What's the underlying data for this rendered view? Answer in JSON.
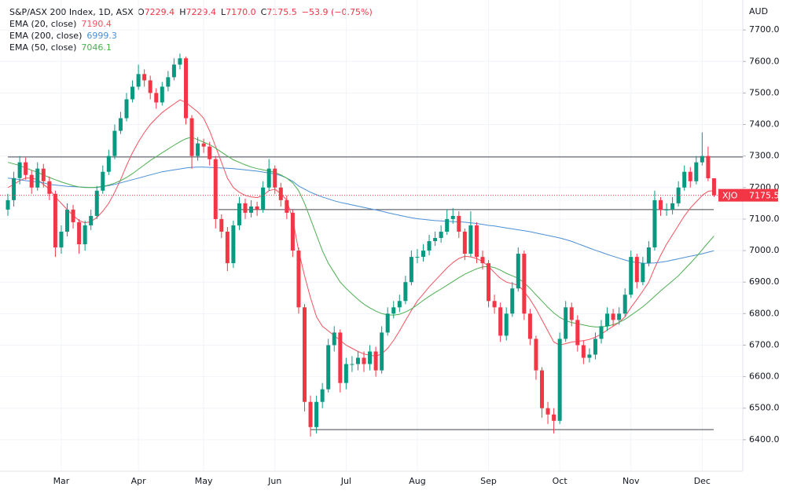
{
  "header": {
    "title": "S&P/ASX 200 Index, 1D, ASX",
    "ohlc": [
      {
        "key": "O",
        "value": "7229.4"
      },
      {
        "key": "H",
        "value": "7229.4"
      },
      {
        "key": "L",
        "value": "7170.0"
      },
      {
        "key": "C",
        "value": "7175.5"
      }
    ],
    "change": "−53.9 (−0.75%)"
  },
  "chart_data": {
    "type": "candlestick",
    "currency": "AUD",
    "symbol_tag": "XJO",
    "up_color": "#089981",
    "down_color": "#f23645",
    "grid": true,
    "categories": [
      null,
      null,
      null,
      null,
      null,
      null,
      null,
      null,
      null,
      "Mar",
      null,
      null,
      null,
      null,
      null,
      null,
      null,
      null,
      null,
      null,
      null,
      null,
      "Apr",
      null,
      null,
      null,
      null,
      null,
      null,
      null,
      null,
      null,
      null,
      "May",
      null,
      null,
      null,
      null,
      null,
      null,
      null,
      null,
      null,
      null,
      null,
      "Jun",
      null,
      null,
      null,
      null,
      null,
      null,
      null,
      null,
      null,
      null,
      null,
      "Jul",
      null,
      null,
      null,
      null,
      null,
      null,
      null,
      null,
      null,
      null,
      null,
      "Aug",
      null,
      null,
      null,
      null,
      null,
      null,
      null,
      null,
      null,
      null,
      null,
      "Sep",
      null,
      null,
      null,
      null,
      null,
      null,
      null,
      null,
      null,
      null,
      null,
      "Oct",
      null,
      null,
      null,
      null,
      null,
      null,
      null,
      null,
      null,
      null,
      null,
      "Nov",
      null,
      null,
      null,
      null,
      null,
      null,
      null,
      null,
      null,
      null,
      null,
      "Dec",
      null,
      null
    ],
    "open": [
      7130,
      7160,
      7230,
      7280,
      7240,
      7200,
      7260,
      7220,
      7180,
      7010,
      7060,
      7130,
      7090,
      7020,
      7080,
      7110,
      7190,
      7250,
      7300,
      7380,
      7420,
      7480,
      7520,
      7560,
      7540,
      7500,
      7470,
      7520,
      7550,
      7590,
      7610,
      7420,
      7300,
      7340,
      7330,
      7290,
      7100,
      7060,
      6960,
      7080,
      7150,
      7120,
      7140,
      7130,
      7200,
      7260,
      7200,
      7160,
      7120,
      7000,
      6820,
      6520,
      6440,
      6520,
      6560,
      6700,
      6740,
      6580,
      6640,
      6640,
      6660,
      6640,
      6680,
      6620,
      6740,
      6800,
      6820,
      6840,
      6900,
      6980,
      6980,
      7000,
      7030,
      7040,
      7060,
      7100,
      7110,
      7060,
      6990,
      7080,
      6980,
      6960,
      6840,
      6820,
      6730,
      6800,
      6880,
      6990,
      6800,
      6720,
      6620,
      6500,
      6480,
      6460,
      6720,
      6820,
      6780,
      6700,
      6660,
      6670,
      6720,
      6760,
      6800,
      6780,
      6800,
      6860,
      6980,
      6900,
      6960,
      7010,
      7160,
      7130,
      7130,
      7150,
      7200,
      7250,
      7220,
      7280,
      7300,
      7229.4
    ],
    "high": [
      7180,
      7250,
      7300,
      7295,
      7255,
      7280,
      7275,
      7235,
      7190,
      7080,
      7150,
      7145,
      7100,
      7095,
      7130,
      7205,
      7270,
      7320,
      7400,
      7440,
      7500,
      7540,
      7590,
      7575,
      7555,
      7515,
      7535,
      7570,
      7610,
      7625,
      7615,
      7430,
      7360,
      7355,
      7345,
      7300,
      7115,
      7075,
      7095,
      7170,
      7165,
      7160,
      7155,
      7220,
      7290,
      7270,
      7215,
      7175,
      7130,
      7010,
      6830,
      6540,
      6540,
      6580,
      6720,
      6760,
      6750,
      6660,
      6665,
      6680,
      6680,
      6700,
      6695,
      6760,
      6820,
      6840,
      6860,
      6920,
      7000,
      7005,
      7020,
      7050,
      7060,
      7080,
      7130,
      7135,
      7125,
      7070,
      7125,
      7090,
      7000,
      6970,
      6860,
      6835,
      6820,
      6900,
      7010,
      7000,
      6815,
      6730,
      6630,
      6520,
      6500,
      6740,
      6840,
      6835,
      6795,
      6715,
      6690,
      6740,
      6780,
      6820,
      6815,
      6820,
      6880,
      7000,
      6990,
      6980,
      7030,
      7190,
      7170,
      7150,
      7170,
      7220,
      7270,
      7265,
      7300,
      7375,
      7330,
      7229.4
    ],
    "low": [
      7110,
      7140,
      7210,
      7225,
      7180,
      7190,
      7200,
      7160,
      6980,
      6990,
      7045,
      7070,
      6990,
      7000,
      7065,
      7100,
      7180,
      7240,
      7290,
      7370,
      7410,
      7470,
      7510,
      7520,
      7480,
      7450,
      7460,
      7505,
      7540,
      7575,
      7400,
      7260,
      7285,
      7310,
      7270,
      7070,
      7040,
      6935,
      6945,
      7065,
      7100,
      7105,
      7110,
      7120,
      7190,
      7180,
      7140,
      7100,
      6980,
      6800,
      6490,
      6410,
      6420,
      6500,
      6550,
      6680,
      6550,
      6560,
      6615,
      6620,
      6615,
      6620,
      6600,
      6610,
      6730,
      6785,
      6805,
      6830,
      6890,
      6960,
      6965,
      6985,
      7015,
      7025,
      7050,
      7085,
      7040,
      6970,
      6980,
      6960,
      6940,
      6820,
      6800,
      6710,
      6715,
      6790,
      6870,
      6780,
      6700,
      6590,
      6470,
      6450,
      6420,
      6450,
      6710,
      6760,
      6680,
      6640,
      6645,
      6655,
      6705,
      6745,
      6760,
      6765,
      6790,
      6850,
      6880,
      6890,
      6950,
      7000,
      7110,
      7110,
      7115,
      7140,
      7190,
      7200,
      7210,
      7270,
      7220,
      7170
    ],
    "close": [
      7160,
      7230,
      7280,
      7240,
      7200,
      7260,
      7220,
      7180,
      7010,
      7060,
      7130,
      7090,
      7020,
      7080,
      7110,
      7190,
      7250,
      7300,
      7380,
      7420,
      7480,
      7520,
      7560,
      7540,
      7500,
      7470,
      7520,
      7550,
      7590,
      7610,
      7420,
      7300,
      7340,
      7330,
      7290,
      7100,
      7060,
      6960,
      7080,
      7150,
      7120,
      7140,
      7130,
      7200,
      7260,
      7200,
      7160,
      7120,
      7000,
      6820,
      6520,
      6440,
      6520,
      6560,
      6700,
      6740,
      6580,
      6640,
      6640,
      6660,
      6640,
      6680,
      6620,
      6740,
      6800,
      6820,
      6840,
      6900,
      6980,
      6980,
      7000,
      7030,
      7040,
      7060,
      7100,
      7110,
      7060,
      6990,
      7080,
      6980,
      6960,
      6840,
      6820,
      6730,
      6800,
      6880,
      6990,
      6800,
      6720,
      6620,
      6500,
      6480,
      6460,
      6720,
      6820,
      6780,
      6700,
      6660,
      6670,
      6720,
      6760,
      6800,
      6780,
      6800,
      6860,
      6980,
      6900,
      6960,
      7010,
      7160,
      7130,
      7130,
      7150,
      7200,
      7250,
      7220,
      7280,
      7300,
      7229.4,
      7175.5
    ],
    "series": [
      {
        "name": "EMA (20, close)",
        "color": "#f7525f",
        "values": [
          7200,
          7210,
          7222,
          7230,
          7230,
          7225,
          7210,
          7195,
          7170,
          7150,
          7130,
          7112,
          7095,
          7088,
          7092,
          7105,
          7125,
          7150,
          7185,
          7225,
          7270,
          7310,
          7345,
          7375,
          7400,
          7420,
          7438,
          7452,
          7465,
          7478,
          7470,
          7455,
          7440,
          7420,
          7380,
          7330,
          7280,
          7230,
          7200,
          7185,
          7175,
          7170,
          7168,
          7175,
          7190,
          7195,
          7180,
          7160,
          7100,
          7000,
          6920,
          6850,
          6790,
          6760,
          6745,
          6730,
          6715,
          6700,
          6690,
          6680,
          6672,
          6668,
          6665,
          6672,
          6690,
          6715,
          6745,
          6778,
          6810,
          6840,
          6862,
          6885,
          6905,
          6925,
          6945,
          6962,
          6975,
          6982,
          6980,
          6975,
          6965,
          6950,
          6930,
          6912,
          6900,
          6895,
          6890,
          6870,
          6845,
          6815,
          6780,
          6745,
          6710,
          6700,
          6705,
          6710,
          6712,
          6714,
          6718,
          6725,
          6735,
          6748,
          6760,
          6772,
          6790,
          6820,
          6845,
          6872,
          6900,
          6945,
          6985,
          7020,
          7050,
          7080,
          7110,
          7135,
          7155,
          7175,
          7188,
          7190.4
        ]
      },
      {
        "name": "EMA (200, close)",
        "color": "#4a8fd6",
        "values": [
          7230,
          7228,
          7225,
          7222,
          7220,
          7218,
          7215,
          7210,
          7208,
          7206,
          7204,
          7203,
          7202,
          7201,
          7200,
          7200,
          7203,
          7206,
          7210,
          7215,
          7220,
          7225,
          7230,
          7235,
          7240,
          7245,
          7250,
          7253,
          7256,
          7259,
          7262,
          7264,
          7265,
          7265,
          7264,
          7263,
          7262,
          7261,
          7260,
          7258,
          7256,
          7254,
          7252,
          7249,
          7246,
          7243,
          7238,
          7230,
          7220,
          7205,
          7195,
          7185,
          7177,
          7170,
          7164,
          7158,
          7153,
          7149,
          7145,
          7141,
          7137,
          7133,
          7129,
          7125,
          7120,
          7116,
          7112,
          7108,
          7104,
          7101,
          7099,
          7097,
          7095,
          7094,
          7093,
          7092,
          7091,
          7090,
          7088,
          7086,
          7083,
          7080,
          7078,
          7075,
          7072,
          7069,
          7066,
          7063,
          7060,
          7056,
          7052,
          7048,
          7044,
          7040,
          7035,
          7029,
          7022,
          7015,
          7008,
          7001,
          6995,
          6988,
          6982,
          6976,
          6970,
          6965,
          6962,
          6960,
          6960,
          6961,
          6963,
          6966,
          6970,
          6974,
          6978,
          6982,
          6986,
          6990,
          6995,
          6999.3
        ]
      },
      {
        "name": "EMA (50, close)",
        "color": "#4caf50",
        "values": [
          7280,
          7275,
          7270,
          7262,
          7255,
          7248,
          7240,
          7232,
          7225,
          7218,
          7212,
          7206,
          7202,
          7200,
          7200,
          7201,
          7204,
          7208,
          7214,
          7222,
          7232,
          7244,
          7258,
          7272,
          7286,
          7298,
          7310,
          7322,
          7334,
          7345,
          7355,
          7360,
          7352,
          7344,
          7336,
          7325,
          7312,
          7300,
          7288,
          7280,
          7272,
          7265,
          7260,
          7256,
          7252,
          7248,
          7240,
          7230,
          7215,
          7190,
          7150,
          7100,
          7050,
          7000,
          6960,
          6930,
          6900,
          6880,
          6862,
          6845,
          6830,
          6818,
          6808,
          6800,
          6796,
          6795,
          6798,
          6805,
          6815,
          6828,
          6842,
          6855,
          6867,
          6878,
          6890,
          6902,
          6914,
          6925,
          6934,
          6942,
          6948,
          6950,
          6946,
          6938,
          6928,
          6920,
          6912,
          6898,
          6880,
          6860,
          6840,
          6820,
          6802,
          6788,
          6778,
          6772,
          6768,
          6764,
          6760,
          6758,
          6758,
          6760,
          6765,
          6772,
          6782,
          6795,
          6808,
          6822,
          6838,
          6855,
          6872,
          6888,
          6904,
          6920,
          6940,
          6960,
          6980,
          7003,
          7025,
          7046.1
        ]
      }
    ],
    "hlines": [
      7297,
      7130,
      6432
    ],
    "ylim": [
      6300,
      7795
    ],
    "yticks": [
      {
        "value": 6400,
        "label": "6400.0"
      },
      {
        "value": 6500,
        "label": "6500.0"
      },
      {
        "value": 6600,
        "label": "6600.0"
      },
      {
        "value": 6700,
        "label": "6700.0"
      },
      {
        "value": 6800,
        "label": "6800.0"
      },
      {
        "value": 6900,
        "label": "6900.0"
      },
      {
        "value": 7000,
        "label": "7000.0"
      },
      {
        "value": 7100,
        "label": "7100.0"
      },
      {
        "value": 7200,
        "label": "7200.0"
      },
      {
        "value": 7300,
        "label": "7300.0"
      },
      {
        "value": 7400,
        "label": "7400.0"
      },
      {
        "value": 7500,
        "label": "7500.0"
      },
      {
        "value": 7600,
        "label": "7600.0"
      },
      {
        "value": 7700,
        "label": "7700.0"
      }
    ]
  }
}
